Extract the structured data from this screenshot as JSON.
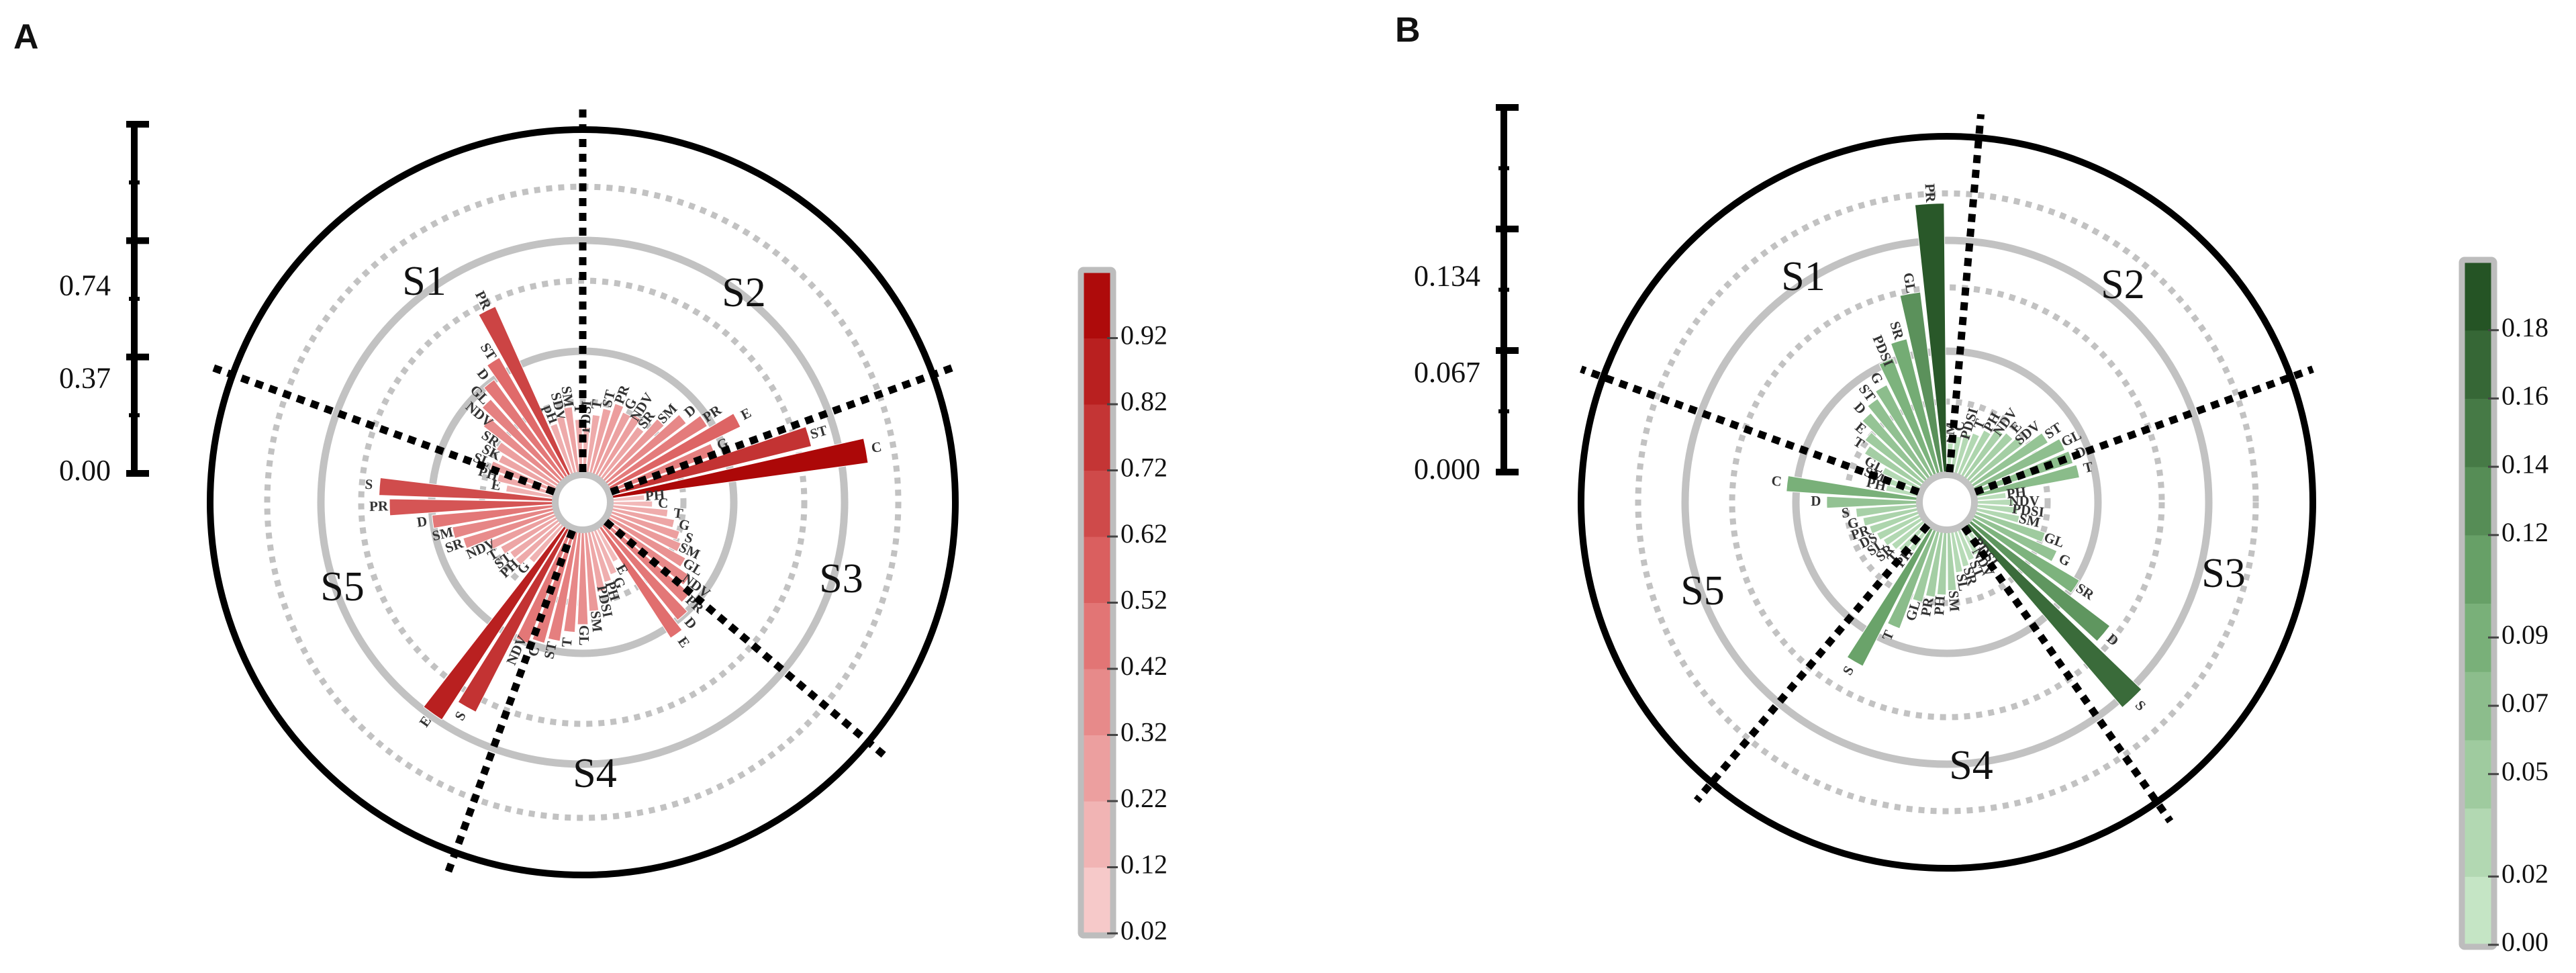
{
  "chart_data": [
    {
      "panel": "A",
      "type": "bar",
      "subtype": "radial-bar",
      "colormap": "reds",
      "palette": {
        "low": "#f8d4d4",
        "mid": "#e06a6a",
        "high": "#a80000"
      },
      "scale_ticks": [
        "0.00",
        "0.37",
        "0.74"
      ],
      "scale_range": [
        0,
        1.11
      ],
      "colorbar": {
        "min": 0.02,
        "max": 1.02,
        "ticks": [
          "0.02",
          "0.12",
          "0.22",
          "0.32",
          "0.42",
          "0.52",
          "0.62",
          "0.72",
          "0.82",
          "0.92"
        ]
      },
      "grid": true,
      "sectors": [
        {
          "label": "S1",
          "bars": [
            {
              "name": "PDSI",
              "value": 0.17
            },
            {
              "name": "T",
              "value": 0.22
            },
            {
              "name": "ST",
              "value": 0.25
            },
            {
              "name": "PR",
              "value": 0.28
            },
            {
              "name": "G",
              "value": 0.26
            },
            {
              "name": "NDV",
              "value": 0.27
            },
            {
              "name": "SR",
              "value": 0.24
            },
            {
              "name": "SM",
              "value": 0.31
            },
            {
              "name": "D",
              "value": 0.38
            },
            {
              "name": "PR",
              "value": 0.44
            },
            {
              "name": "E",
              "value": 0.55
            },
            {
              "name": "G",
              "value": 0.42
            },
            {
              "name": "ST",
              "value": 0.78
            },
            {
              "name": "C",
              "value": 0.98
            }
          ]
        },
        {
          "label": "S2",
          "bars": [
            {
              "name": "PH",
              "value": 0.12
            },
            {
              "name": "C",
              "value": 0.15
            },
            {
              "name": "T",
              "value": 0.21
            },
            {
              "name": "G",
              "value": 0.24
            },
            {
              "name": "S",
              "value": 0.27
            },
            {
              "name": "SM",
              "value": 0.29
            },
            {
              "name": "GL",
              "value": 0.33
            },
            {
              "name": "NDV",
              "value": 0.38
            },
            {
              "name": "PR",
              "value": 0.42
            },
            {
              "name": "D",
              "value": 0.46
            },
            {
              "name": "E",
              "value": 0.5
            }
          ]
        },
        {
          "label": "S3",
          "bars": [
            {
              "name": "E",
              "value": 0.14
            },
            {
              "name": "G",
              "value": 0.18
            },
            {
              "name": "PH",
              "value": 0.2
            },
            {
              "name": "PDSI",
              "value": 0.23
            },
            {
              "name": "SM",
              "value": 0.3
            },
            {
              "name": "GL",
              "value": 0.35
            },
            {
              "name": "T",
              "value": 0.38
            },
            {
              "name": "ST",
              "value": 0.42
            },
            {
              "name": "C",
              "value": 0.44
            },
            {
              "name": "NDV",
              "value": 0.46
            },
            {
              "name": "S",
              "value": 0.78
            },
            {
              "name": "E",
              "value": 0.87
            }
          ]
        },
        {
          "label": "S4",
          "bars": [
            {
              "name": "G",
              "value": 0.18
            },
            {
              "name": "PH",
              "value": 0.22
            },
            {
              "name": "ST",
              "value": 0.22
            },
            {
              "name": "T",
              "value": 0.24
            },
            {
              "name": "NDV",
              "value": 0.27
            },
            {
              "name": "SR",
              "value": 0.36
            },
            {
              "name": "SM",
              "value": 0.39
            },
            {
              "name": "D",
              "value": 0.46
            },
            {
              "name": "PR",
              "value": 0.62
            },
            {
              "name": "S",
              "value": 0.66
            }
          ]
        },
        {
          "label": "S5",
          "bars": [
            {
              "name": "E",
              "value": 0.18
            },
            {
              "name": "PH",
              "value": 0.22
            },
            {
              "name": "SL",
              "value": 0.26
            },
            {
              "name": "SK",
              "value": 0.24
            },
            {
              "name": "SR",
              "value": 0.27
            },
            {
              "name": "NDV",
              "value": 0.36
            },
            {
              "name": "GL",
              "value": 0.41
            },
            {
              "name": "D",
              "value": 0.46
            },
            {
              "name": "ST",
              "value": 0.52
            },
            {
              "name": "PR",
              "value": 0.7
            },
            {
              "name": "pH",
              "value": 0.2
            },
            {
              "name": "SDV",
              "value": 0.22
            },
            {
              "name": "SM",
              "value": 0.25
            },
            {
              "name": "T",
              "value": 0.2
            }
          ]
        }
      ]
    },
    {
      "panel": "B",
      "type": "bar",
      "subtype": "radial-bar",
      "colormap": "greens",
      "palette": {
        "low": "#cfeccf",
        "mid": "#6fa96f",
        "high": "#1d4a1d"
      },
      "scale_ticks": [
        "0.000",
        "0.067",
        "0.134"
      ],
      "scale_range": [
        0,
        0.201
      ],
      "colorbar": {
        "min": 0.0,
        "max": 0.2,
        "ticks": [
          "0.00",
          "0.02",
          "0.05",
          "0.07",
          "0.09",
          "0.12",
          "0.14",
          "0.16",
          "0.18"
        ]
      },
      "grid": true,
      "sectors": [
        {
          "label": "S1",
          "bars": [
            {
              "name": "SM",
              "value": 0.02
            },
            {
              "name": "C",
              "value": 0.025
            },
            {
              "name": "PDSI",
              "value": 0.028
            },
            {
              "name": "T",
              "value": 0.03
            },
            {
              "name": "PH",
              "value": 0.035
            },
            {
              "name": "NDV",
              "value": 0.04
            },
            {
              "name": "E",
              "value": 0.042
            },
            {
              "name": "SDV",
              "value": 0.045
            },
            {
              "name": "ST",
              "value": 0.06
            },
            {
              "name": "GL",
              "value": 0.068
            },
            {
              "name": "D",
              "value": 0.07
            },
            {
              "name": "T",
              "value": 0.072
            }
          ]
        },
        {
          "label": "S2",
          "bars": [
            {
              "name": "PH",
              "value": 0.02
            },
            {
              "name": "NDV",
              "value": 0.025
            },
            {
              "name": "PDSI",
              "value": 0.028
            },
            {
              "name": "SM",
              "value": 0.03
            },
            {
              "name": "GL",
              "value": 0.05
            },
            {
              "name": "G",
              "value": 0.062
            },
            {
              "name": "SR",
              "value": 0.085
            },
            {
              "name": "D",
              "value": 0.12
            },
            {
              "name": "S",
              "value": 0.165
            }
          ]
        },
        {
          "label": "S3",
          "bars": [
            {
              "name": "PDSI",
              "value": 0.015
            },
            {
              "name": "NDV",
              "value": 0.02
            },
            {
              "name": "ST",
              "value": 0.022
            },
            {
              "name": "SR",
              "value": 0.025
            },
            {
              "name": "SL",
              "value": 0.028
            },
            {
              "name": "SM",
              "value": 0.04
            },
            {
              "name": "PH",
              "value": 0.043
            },
            {
              "name": "PR",
              "value": 0.045
            },
            {
              "name": "GL",
              "value": 0.05
            },
            {
              "name": "T",
              "value": 0.072
            },
            {
              "name": "S",
              "value": 0.106
            }
          ]
        },
        {
          "label": "S4",
          "bars": [
            {
              "name": "PH",
              "value": 0.02
            },
            {
              "name": "T",
              "value": 0.025
            },
            {
              "name": "SR",
              "value": 0.027
            },
            {
              "name": "SL",
              "value": 0.03
            },
            {
              "name": "DS",
              "value": 0.032
            },
            {
              "name": "PR",
              "value": 0.035
            },
            {
              "name": "G",
              "value": 0.038
            },
            {
              "name": "S",
              "value": 0.042
            },
            {
              "name": "D",
              "value": 0.062
            },
            {
              "name": "C",
              "value": 0.09
            }
          ]
        },
        {
          "label": "S5",
          "bars": [
            {
              "name": "PH",
              "value": 0.022
            },
            {
              "name": "SM",
              "value": 0.025
            },
            {
              "name": "GL",
              "value": 0.028
            },
            {
              "name": "T",
              "value": 0.045
            },
            {
              "name": "E",
              "value": 0.05
            },
            {
              "name": "D",
              "value": 0.06
            },
            {
              "name": "ST",
              "value": 0.065
            },
            {
              "name": "G",
              "value": 0.07
            },
            {
              "name": "PDSI",
              "value": 0.085
            },
            {
              "name": "SR",
              "value": 0.095
            },
            {
              "name": "GL",
              "value": 0.125
            },
            {
              "name": "PR",
              "value": 0.185
            }
          ]
        }
      ]
    }
  ]
}
